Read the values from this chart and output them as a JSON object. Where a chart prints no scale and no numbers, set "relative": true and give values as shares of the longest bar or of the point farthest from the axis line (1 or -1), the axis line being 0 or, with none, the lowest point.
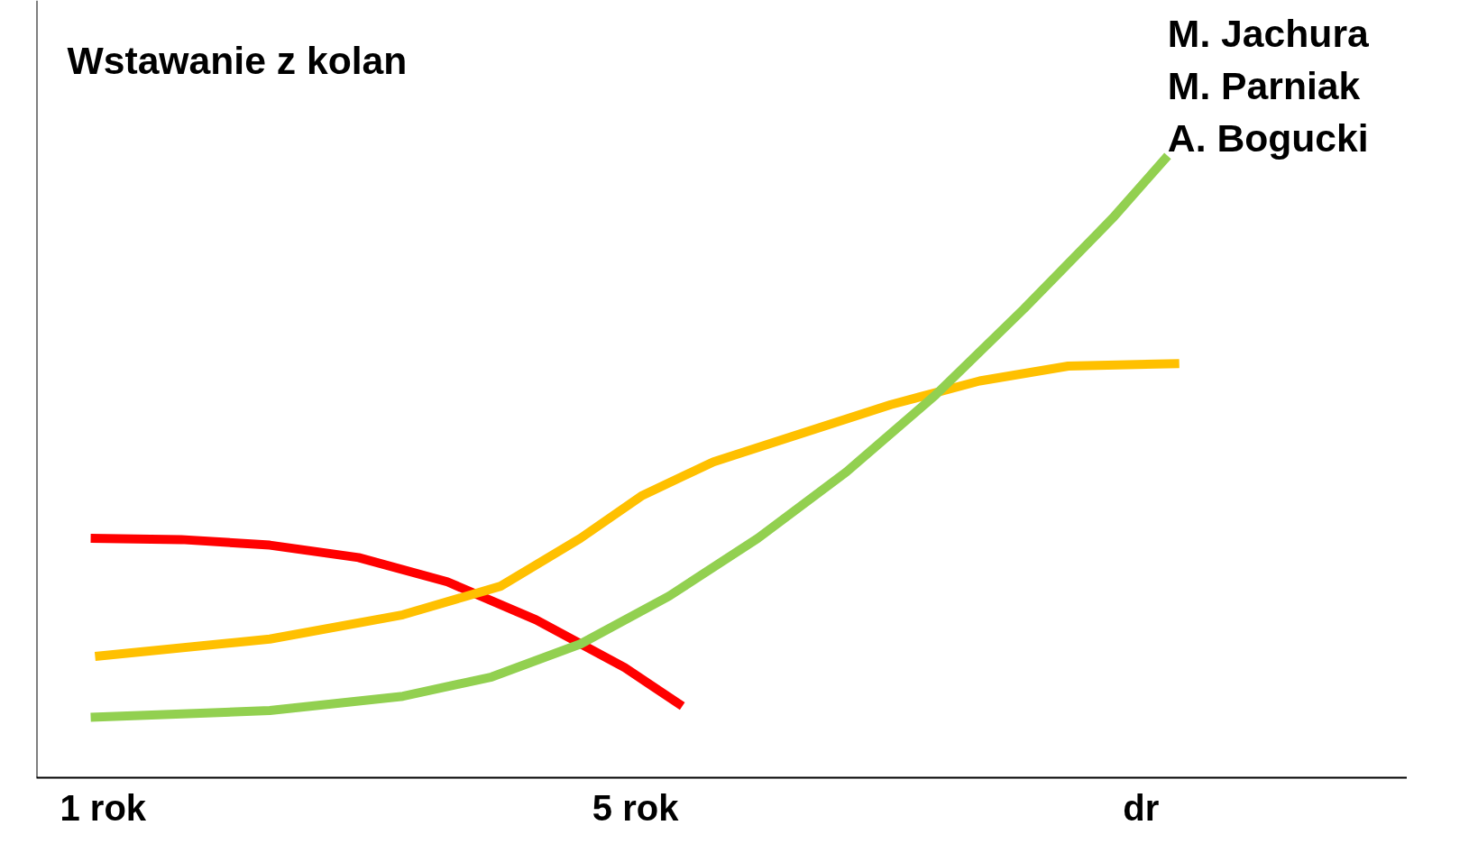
{
  "chart_data": {
    "type": "line",
    "title": "Wstawanie z kolan",
    "relative": true,
    "grid": false,
    "xlim": [
      0.5,
      10.8
    ],
    "xticks": [
      {
        "value": 1,
        "label": "1 rok"
      },
      {
        "value": 5,
        "label": "5 rok"
      },
      {
        "value": 8.8,
        "label": "dr"
      }
    ],
    "annotations": [
      "M. Jachura",
      "M. Parniak",
      "A. Bogucki"
    ],
    "series": [
      {
        "color": "#ff0000",
        "x": [
          0.907,
          1.587,
          2.253,
          2.92,
          3.587,
          4.253,
          4.92,
          5.353
        ],
        "values": [
          0.385,
          0.383,
          0.374,
          0.354,
          0.315,
          0.254,
          0.177,
          0.115
        ]
      },
      {
        "color": "#ffc000",
        "x": [
          0.94,
          2.253,
          3.253,
          3.987,
          4.587,
          5.053,
          5.587,
          6.253,
          6.92,
          7.587,
          8.253,
          9.087
        ],
        "values": [
          0.195,
          0.223,
          0.262,
          0.308,
          0.385,
          0.454,
          0.508,
          0.554,
          0.6,
          0.638,
          0.662,
          0.666
        ]
      },
      {
        "color": "#92d050",
        "x": [
          0.907,
          2.253,
          3.253,
          3.92,
          4.587,
          5.253,
          5.92,
          6.587,
          7.253,
          7.92,
          8.587,
          9.0
        ],
        "values": [
          0.097,
          0.108,
          0.131,
          0.162,
          0.215,
          0.292,
          0.385,
          0.492,
          0.615,
          0.754,
          0.9,
          1.0
        ]
      }
    ]
  }
}
